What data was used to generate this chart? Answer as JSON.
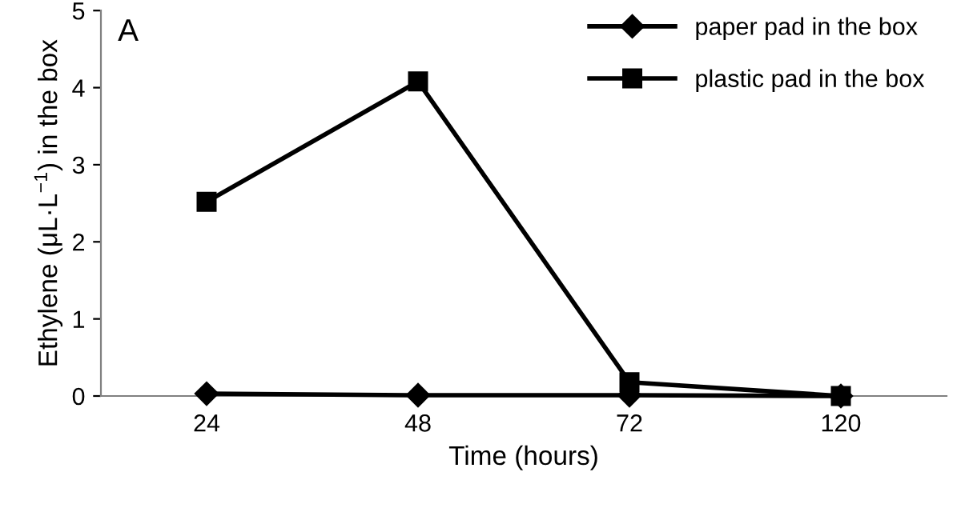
{
  "chart_data": {
    "type": "line",
    "xlabel": "Time (hours)",
    "ylabel": "Ethylene (μL·L$^{−1}$) in the box",
    "annotations": [
      "A"
    ],
    "categories": [
      "24",
      "48",
      "72",
      "120"
    ],
    "series": [
      {
        "name": "paper pad in the box",
        "color": "#000000",
        "marker": "diamond",
        "values": [
          0.03,
          0.01,
          0.01,
          0.0
        ]
      },
      {
        "name": "plastic pad in the box",
        "color": "#000000",
        "marker": "square",
        "values": [
          2.52,
          4.08,
          0.18,
          0.0
        ]
      }
    ],
    "ylim": [
      0,
      5
    ],
    "yticks": [
      0,
      1,
      2,
      3,
      4,
      5
    ],
    "grid": false,
    "legend": "top right",
    "line_style": "solid"
  }
}
